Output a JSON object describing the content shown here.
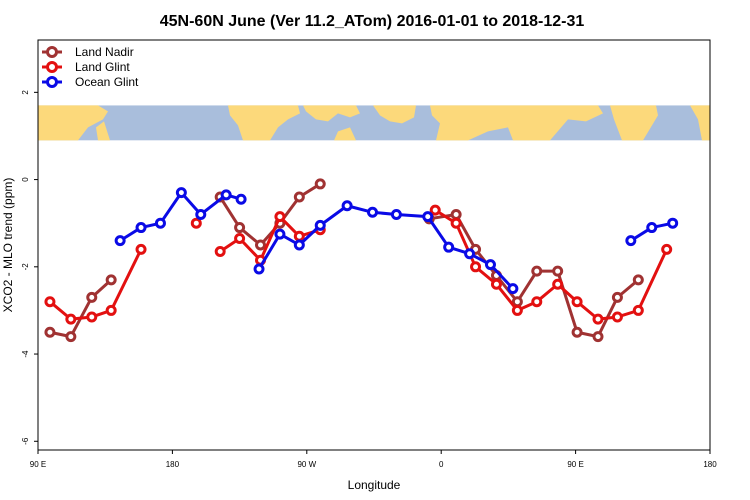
{
  "chart_data": {
    "type": "line",
    "title": "45N-60N June (Ver 11.2_ATom)   2016-01-01 to 2018-12-31",
    "xlabel": "Longitude",
    "ylabel": "XCO2 - MLO trend (ppm)",
    "xlim": [
      90,
      540
    ],
    "ylim": [
      -6.2,
      3.2
    ],
    "x_ticks": [
      {
        "value": 90,
        "label": "90 E"
      },
      {
        "value": 180,
        "label": "180"
      },
      {
        "value": 270,
        "label": "90 W"
      },
      {
        "value": 360,
        "label": "0"
      },
      {
        "value": 450,
        "label": "90 E"
      },
      {
        "value": 540,
        "label": "180"
      }
    ],
    "y_ticks": [
      {
        "value": 2,
        "label": "2"
      },
      {
        "value": 0,
        "label": "0"
      },
      {
        "value": -2,
        "label": "-2"
      },
      {
        "value": -4,
        "label": "-4"
      },
      {
        "value": -6,
        "label": "-6"
      }
    ],
    "legend_position": "top-left",
    "map_strip": {
      "y_top": 1.7,
      "y_bottom": 0.9,
      "ocean_color": "#a9bedc",
      "land_color": "#fcd97b"
    },
    "series": [
      {
        "name": "Land Nadir",
        "color": "#a03232",
        "segments": [
          [
            [
              98,
              -3.5
            ],
            [
              112,
              -3.6
            ],
            [
              126,
              -2.7
            ],
            [
              139,
              -2.3
            ]
          ],
          [
            [
              212,
              -0.4
            ],
            [
              225,
              -1.1
            ],
            [
              239,
              -1.5
            ],
            [
              252,
              -1.0
            ],
            [
              265,
              -0.4
            ],
            [
              279,
              -0.1
            ]
          ],
          [
            [
              352,
              -0.9
            ],
            [
              370,
              -0.8
            ],
            [
              383,
              -1.6
            ],
            [
              397,
              -2.2
            ],
            [
              411,
              -2.8
            ],
            [
              424,
              -2.1
            ],
            [
              438,
              -2.1
            ],
            [
              451,
              -3.5
            ],
            [
              465,
              -3.6
            ],
            [
              478,
              -2.7
            ],
            [
              492,
              -2.3
            ]
          ]
        ]
      },
      {
        "name": "Land Glint",
        "color": "#e31010",
        "segments": [
          [
            [
              98,
              -2.8
            ],
            [
              112,
              -3.2
            ],
            [
              126,
              -3.15
            ],
            [
              139,
              -3.0
            ],
            [
              159,
              -1.6
            ]
          ],
          [
            [
              196,
              -1.0
            ]
          ],
          [
            [
              212,
              -1.65
            ],
            [
              225,
              -1.35
            ],
            [
              239,
              -1.85
            ],
            [
              252,
              -0.85
            ],
            [
              265,
              -1.3
            ],
            [
              279,
              -1.15
            ]
          ],
          [
            [
              356,
              -0.7
            ],
            [
              370,
              -1.0
            ],
            [
              383,
              -2.0
            ],
            [
              397,
              -2.4
            ],
            [
              411,
              -3.0
            ],
            [
              424,
              -2.8
            ],
            [
              438,
              -2.4
            ],
            [
              451,
              -2.8
            ],
            [
              465,
              -3.2
            ],
            [
              478,
              -3.15
            ],
            [
              492,
              -3.0
            ],
            [
              511,
              -1.6
            ]
          ]
        ]
      },
      {
        "name": "Ocean Glint",
        "color": "#0a0ae6",
        "segments": [
          [
            [
              145,
              -1.4
            ],
            [
              159,
              -1.1
            ],
            [
              172,
              -1.0
            ],
            [
              186,
              -0.3
            ],
            [
              199,
              -0.8
            ],
            [
              216,
              -0.35
            ],
            [
              226,
              -0.45
            ]
          ],
          [
            [
              238,
              -2.05
            ],
            [
              252,
              -1.25
            ],
            [
              265,
              -1.5
            ],
            [
              279,
              -1.05
            ],
            [
              297,
              -0.6
            ],
            [
              314,
              -0.75
            ],
            [
              330,
              -0.8
            ],
            [
              351,
              -0.85
            ],
            [
              365,
              -1.55
            ],
            [
              379,
              -1.7
            ],
            [
              393,
              -1.95
            ],
            [
              408,
              -2.5
            ]
          ],
          [
            [
              487,
              -1.4
            ],
            [
              501,
              -1.1
            ],
            [
              515,
              -1.0
            ]
          ]
        ]
      }
    ]
  }
}
